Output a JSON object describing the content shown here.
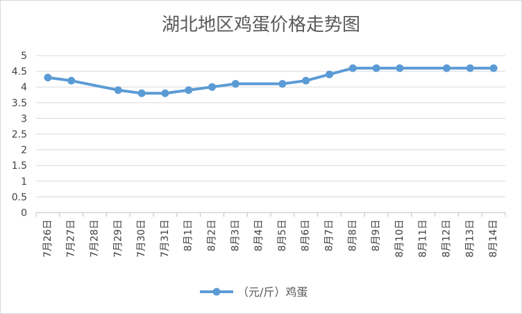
{
  "chart_data": {
    "type": "line",
    "title": "湖北地区鸡蛋价格走势图",
    "xlabel": "",
    "ylabel": "",
    "ylim": [
      0,
      5
    ],
    "yticks": [
      "0",
      "0.5",
      "1",
      "1.5",
      "2",
      "2.5",
      "3",
      "3.5",
      "4",
      "4.5",
      "5"
    ],
    "grid": true,
    "legend_position": "bottom",
    "categories": [
      "7月26日",
      "7月27日",
      "7月28日",
      "7月29日",
      "7月30日",
      "7月31日",
      "8月1日",
      "8月2日",
      "8月3日",
      "8月4日",
      "8月5日",
      "8月6日",
      "8月7日",
      "8月8日",
      "8月9日",
      "8月10日",
      "8月11日",
      "8月12日",
      "8月13日",
      "8月14日"
    ],
    "series": [
      {
        "name": "（元/斤）鸡蛋",
        "color": "#5b9bd5",
        "points": [
          {
            "x": "7月26日",
            "y": 4.3
          },
          {
            "x": "7月27日",
            "y": 4.2
          },
          {
            "x": "7月29日",
            "y": 3.9
          },
          {
            "x": "7月30日",
            "y": 3.8
          },
          {
            "x": "7月31日",
            "y": 3.8
          },
          {
            "x": "8月1日",
            "y": 3.9
          },
          {
            "x": "8月2日",
            "y": 4.0
          },
          {
            "x": "8月3日",
            "y": 4.1
          },
          {
            "x": "8月5日",
            "y": 4.1
          },
          {
            "x": "8月6日",
            "y": 4.2
          },
          {
            "x": "8月7日",
            "y": 4.4
          },
          {
            "x": "8月8日",
            "y": 4.6
          },
          {
            "x": "8月9日",
            "y": 4.6
          },
          {
            "x": "8月10日",
            "y": 4.6
          },
          {
            "x": "8月12日",
            "y": 4.6
          },
          {
            "x": "8月13日",
            "y": 4.6
          },
          {
            "x": "8月14日",
            "y": 4.6
          }
        ]
      }
    ]
  }
}
